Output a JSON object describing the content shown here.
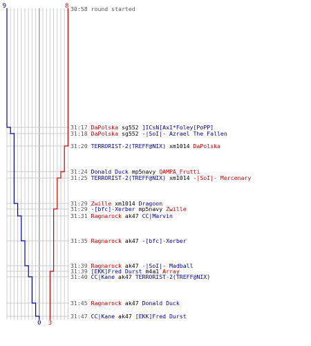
{
  "colors": {
    "blue": "#0000aa",
    "red": "#cc0000",
    "gray": "#999999",
    "grid": "#cccccc",
    "text": "#000000",
    "time": "#555555"
  },
  "counts": {
    "team_blue_start": "9",
    "team_red_start": "8",
    "team_blue_end": "0",
    "team_red_end": "3"
  },
  "events": [
    {
      "time": "30:58",
      "kind": "info",
      "text": "round started"
    },
    {
      "time": "31:17",
      "kind": "kill",
      "killer": "DaPolska",
      "killer_team": "red",
      "weapon": "sg552",
      "victim": "]ICsN[Ax1*Foley[PoPP]",
      "victim_team": "blue"
    },
    {
      "time": "31:18",
      "kind": "kill",
      "killer": "DaPolska",
      "killer_team": "red",
      "weapon": "sg552",
      "victim": "-|SoI|- Azrael The Fallen",
      "victim_team": "blue"
    },
    {
      "time": "31:20",
      "kind": "kill",
      "killer": "TERRORIST-2(TREFF@NIX)",
      "killer_team": "blue",
      "weapon": "xm1014",
      "victim": "DaPolska",
      "victim_team": "red"
    },
    {
      "time": "31:24",
      "kind": "kill",
      "killer": "Donald Duck",
      "killer_team": "blue",
      "weapon": "mp5navy",
      "victim": "QAMPA_Frutti",
      "victim_team": "red"
    },
    {
      "time": "31:25",
      "kind": "kill",
      "killer": "TERRORIST-2(TREFF@NIX)",
      "killer_team": "blue",
      "weapon": "xm1014",
      "victim": "-|SoI|- Mercenary",
      "victim_team": "red"
    },
    {
      "time": "31:29",
      "kind": "kill",
      "killer": "Zwille",
      "killer_team": "red",
      "weapon": "xm1014",
      "victim": "Dragoon",
      "victim_team": "blue"
    },
    {
      "time": "31:29",
      "kind": "kill",
      "killer": "-[bfc]-Xerber",
      "killer_team": "blue",
      "weapon": "mp5navy",
      "victim": "Zwille",
      "victim_team": "red"
    },
    {
      "time": "31:31",
      "kind": "kill",
      "killer": "Ragnarock",
      "killer_team": "red",
      "weapon": "ak47",
      "victim": "CC|Marvin",
      "victim_team": "blue"
    },
    {
      "time": "31:35",
      "kind": "kill",
      "killer": "Ragnarock",
      "killer_team": "red",
      "weapon": "ak47",
      "victim": "-[bfc]-Xerber",
      "victim_team": "blue"
    },
    {
      "time": "31:39",
      "kind": "kill",
      "killer": "Ragnarock",
      "killer_team": "red",
      "weapon": "ak47",
      "victim": "-|SoI|- Madball",
      "victim_team": "blue"
    },
    {
      "time": "31:39",
      "kind": "kill",
      "killer": "[EKK]Fred Durst",
      "killer_team": "blue",
      "weapon": "m4a1",
      "victim": "Array",
      "victim_team": "red"
    },
    {
      "time": "31:40",
      "kind": "kill",
      "killer": "CC|Kane",
      "killer_team": "blue",
      "weapon": "ak47",
      "victim": "TERRORIST-2(TREFF@NIX)",
      "victim_team": "blue"
    },
    {
      "time": "31:45",
      "kind": "kill",
      "killer": "Ragnarock",
      "killer_team": "red",
      "weapon": "ak47",
      "victim": "Donald Duck",
      "victim_team": "blue"
    },
    {
      "time": "31:47",
      "kind": "kill",
      "killer": "CC|Kane",
      "killer_team": "blue",
      "weapon": "ak47",
      "victim": "[EKK]Fred Durst",
      "victim_team": "blue"
    }
  ]
}
